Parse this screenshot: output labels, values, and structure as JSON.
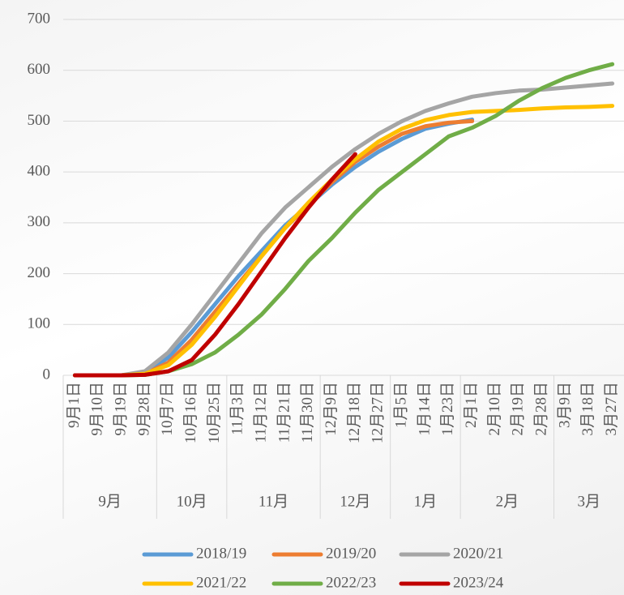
{
  "chart_data": {
    "type": "line",
    "categories": [
      "9月1日",
      "9月10日",
      "9月19日",
      "9月28日",
      "10月7日",
      "10月16日",
      "10月25日",
      "11月3日",
      "11月12日",
      "11月21日",
      "11月30日",
      "12月9日",
      "12月18日",
      "12月27日",
      "1月5日",
      "1月14日",
      "1月23日",
      "2月1日",
      "2月10日",
      "2月19日",
      "2月28日",
      "3月9日",
      "3月18日",
      "3月27日"
    ],
    "month_groups": [
      "9月",
      "10月",
      "11月",
      "12月",
      "1月",
      "2月",
      "3月"
    ],
    "series": [
      {
        "name": "2018/19",
        "color": "#5b9bd5",
        "values": [
          0,
          0,
          0,
          5,
          35,
          85,
          140,
          195,
          245,
          295,
          335,
          375,
          410,
          440,
          465,
          485,
          495,
          503,
          null,
          null,
          null,
          null,
          null,
          null
        ]
      },
      {
        "name": "2019/20",
        "color": "#ed7d31",
        "values": [
          0,
          0,
          0,
          3,
          25,
          70,
          125,
          180,
          235,
          290,
          335,
          380,
          420,
          450,
          475,
          490,
          497,
          500,
          null,
          null,
          null,
          null,
          null,
          null
        ]
      },
      {
        "name": "2020/21",
        "color": "#a5a5a5",
        "values": [
          0,
          0,
          0,
          8,
          45,
          100,
          160,
          220,
          280,
          330,
          370,
          410,
          445,
          475,
          500,
          520,
          535,
          548,
          555,
          560,
          562,
          566,
          570,
          574
        ]
      },
      {
        "name": "2021/22",
        "color": "#ffc000",
        "values": [
          0,
          0,
          0,
          3,
          20,
          60,
          115,
          175,
          235,
          290,
          340,
          385,
          425,
          460,
          485,
          502,
          512,
          518,
          520,
          522,
          525,
          527,
          528,
          530
        ]
      },
      {
        "name": "2022/23",
        "color": "#70ad47",
        "values": [
          0,
          0,
          0,
          1,
          8,
          22,
          45,
          80,
          120,
          170,
          225,
          270,
          320,
          365,
          400,
          435,
          470,
          487,
          510,
          540,
          565,
          585,
          600,
          612
        ]
      },
      {
        "name": "2023/24",
        "color": "#c00000",
        "values": [
          0,
          0,
          0,
          1,
          8,
          30,
          80,
          140,
          205,
          270,
          330,
          385,
          435,
          null,
          null,
          null,
          null,
          null,
          null,
          null,
          null,
          null,
          null,
          null
        ]
      }
    ],
    "ylim": [
      0,
      700
    ],
    "yticks": [
      0,
      100,
      200,
      300,
      400,
      500,
      600,
      700
    ],
    "grid": true
  }
}
